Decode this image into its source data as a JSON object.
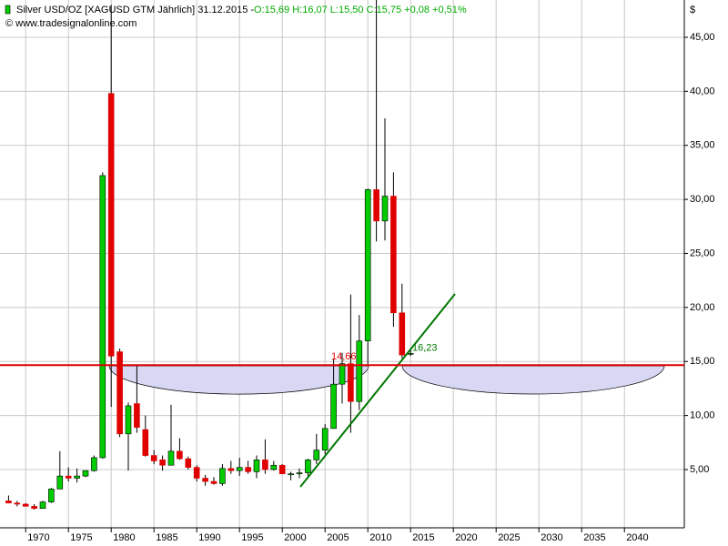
{
  "chart_data": {
    "type": "candlestick",
    "title": "Silver USD/OZ [XAGUSD GTM  Jährlich] 31.12.2015 - ",
    "quote": "O:15,69 H:16,07 L:15,50 C:15,75 +0,08 +0,51%",
    "source": "© www.tradesignalonline.com",
    "y_unit": "$",
    "x": [
      1968,
      1969,
      1970,
      1971,
      1972,
      1973,
      1974,
      1975,
      1976,
      1977,
      1978,
      1979,
      1980,
      1981,
      1982,
      1983,
      1984,
      1985,
      1986,
      1987,
      1988,
      1989,
      1990,
      1991,
      1992,
      1993,
      1994,
      1995,
      1996,
      1997,
      1998,
      1999,
      2000,
      2001,
      2002,
      2003,
      2004,
      2005,
      2006,
      2007,
      2008,
      2009,
      2010,
      2011,
      2012,
      2013,
      2014,
      2015
    ],
    "open": [
      2.1,
      1.9,
      1.8,
      1.6,
      1.4,
      2.0,
      3.2,
      4.4,
      4.2,
      4.4,
      4.9,
      6.1,
      39.8,
      15.9,
      8.3,
      11.1,
      8.7,
      6.3,
      5.9,
      5.4,
      6.7,
      6.0,
      5.2,
      4.2,
      3.9,
      3.7,
      5.1,
      4.9,
      5.2,
      4.8,
      5.9,
      5.0,
      5.4,
      4.6,
      4.6,
      4.7,
      5.9,
      6.8,
      8.8,
      12.9,
      14.8,
      11.3,
      16.9,
      30.9,
      28.0,
      30.3,
      19.5,
      15.69
    ],
    "high": [
      2.6,
      2.1,
      1.9,
      1.8,
      2.1,
      3.3,
      6.7,
      5.2,
      5.1,
      4.9,
      6.3,
      32.5,
      48.0,
      16.2,
      11.2,
      14.7,
      10.0,
      6.8,
      6.3,
      11.0,
      7.9,
      6.2,
      5.4,
      4.5,
      4.3,
      5.5,
      5.8,
      6.1,
      5.8,
      6.3,
      7.8,
      5.8,
      5.5,
      4.8,
      5.1,
      6.0,
      8.3,
      9.2,
      15.2,
      15.8,
      21.2,
      19.3,
      31.0,
      49.8,
      37.5,
      32.5,
      22.2,
      16.07
    ],
    "low": [
      1.9,
      1.6,
      1.6,
      1.3,
      1.4,
      1.9,
      3.2,
      3.9,
      3.8,
      4.3,
      4.8,
      6.0,
      10.8,
      8.0,
      4.9,
      8.4,
      6.2,
      5.5,
      4.9,
      5.4,
      5.9,
      5.0,
      3.9,
      3.5,
      3.6,
      3.5,
      4.6,
      4.4,
      4.6,
      4.2,
      4.6,
      4.9,
      4.6,
      4.0,
      4.2,
      4.4,
      5.5,
      6.4,
      8.8,
      11.1,
      8.4,
      10.5,
      14.6,
      26.1,
      26.2,
      18.2,
      15.3,
      15.5
    ],
    "close": [
      1.9,
      1.8,
      1.6,
      1.4,
      2.0,
      3.2,
      4.4,
      4.2,
      4.4,
      4.9,
      6.1,
      32.2,
      15.5,
      8.3,
      10.9,
      8.9,
      6.3,
      5.8,
      5.4,
      6.7,
      6.0,
      5.2,
      4.2,
      3.9,
      3.7,
      5.1,
      4.9,
      5.2,
      4.8,
      5.9,
      5.0,
      5.4,
      4.6,
      4.6,
      4.7,
      5.9,
      6.8,
      8.8,
      12.9,
      14.8,
      11.3,
      16.9,
      30.9,
      28.0,
      30.3,
      19.5,
      15.6,
      15.75
    ],
    "up_color": "#00cc00",
    "down_color": "#e00000",
    "xlim": [
      1967.0,
      2047.0
    ],
    "ylim": [
      -0.39,
      48.45
    ],
    "xticks": [
      1970,
      1975,
      1980,
      1985,
      1990,
      1995,
      2000,
      2005,
      2010,
      2015,
      2020,
      2025,
      2030,
      2035,
      2040
    ],
    "yticks": [
      {
        "value": 5,
        "label": "5,00"
      },
      {
        "value": 10,
        "label": "10,00"
      },
      {
        "value": 15,
        "label": "15,00"
      },
      {
        "value": 20,
        "label": "20,00"
      },
      {
        "value": 25,
        "label": "25,00"
      },
      {
        "value": 30,
        "label": "30,00"
      },
      {
        "value": 35,
        "label": "35,00"
      },
      {
        "value": 40,
        "label": "40,00"
      },
      {
        "value": 45,
        "label": "45,00"
      }
    ],
    "grid": true,
    "hline": {
      "value": 14.66,
      "label": "14,66",
      "color": "#e00000"
    },
    "price_label": {
      "value": 16.23,
      "label": "16,23",
      "color": "#007700"
    }
  }
}
